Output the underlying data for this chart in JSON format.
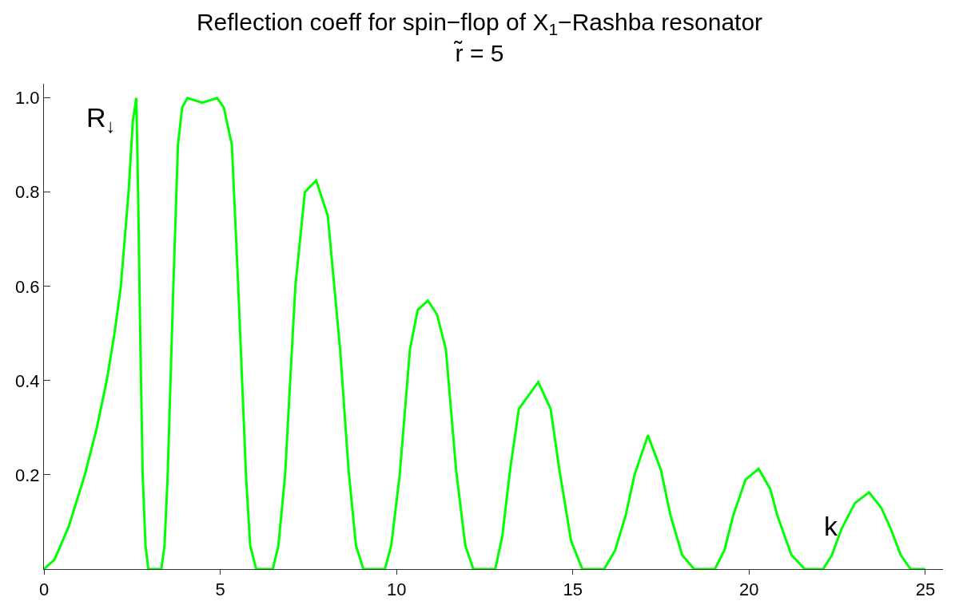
{
  "chart_data": {
    "type": "line",
    "title": "Reflection coeff for spin−flop of X$_{1}$−Rashba resonator",
    "subtitle": "r̃ = 5",
    "x": [
      0,
      0.3,
      0.7,
      1.16,
      1.5,
      1.78,
      2.0,
      2.18,
      2.4,
      2.52,
      2.62,
      2.67,
      2.73,
      2.8,
      2.88,
      2.96,
      3.33,
      3.42,
      3.51,
      3.67,
      3.8,
      3.92,
      4.07,
      4.49,
      4.91,
      5.1,
      5.33,
      5.51,
      5.73,
      5.85,
      6.02,
      6.49,
      6.65,
      6.84,
      7.13,
      7.4,
      7.72,
      8.05,
      8.4,
      8.64,
      8.85,
      9.06,
      9.67,
      9.85,
      10.09,
      10.38,
      10.6,
      10.89,
      11.15,
      11.4,
      11.69,
      11.95,
      12.18,
      12.8,
      13.0,
      13.22,
      13.47,
      14.02,
      14.37,
      14.62,
      14.95,
      15.27,
      15.89,
      16.2,
      16.5,
      16.75,
      17.13,
      17.5,
      17.77,
      18.1,
      18.44,
      19.03,
      19.3,
      19.55,
      19.9,
      20.27,
      20.6,
      20.8,
      21.2,
      21.58,
      22.1,
      22.35,
      22.62,
      23.0,
      23.4,
      23.75,
      24.02,
      24.3,
      24.58,
      25.0
    ],
    "series": [
      {
        "color": "#00ff00",
        "values": [
          0,
          0.02,
          0.09,
          0.2,
          0.3,
          0.4,
          0.5,
          0.6,
          0.8,
          0.95,
          1.0,
          0.8,
          0.5,
          0.2,
          0.05,
          0,
          0,
          0.05,
          0.2,
          0.6,
          0.9,
          0.98,
          1.0,
          0.99,
          1.0,
          0.98,
          0.9,
          0.6,
          0.2,
          0.05,
          0,
          0,
          0.05,
          0.2,
          0.6,
          0.8,
          0.825,
          0.75,
          0.466,
          0.21,
          0.05,
          0,
          0,
          0.05,
          0.2,
          0.466,
          0.55,
          0.57,
          0.54,
          0.466,
          0.21,
          0.05,
          0,
          0,
          0.07,
          0.21,
          0.34,
          0.397,
          0.34,
          0.21,
          0.06,
          0,
          0,
          0.04,
          0.114,
          0.2,
          0.284,
          0.21,
          0.114,
          0.03,
          0,
          0,
          0.04,
          0.114,
          0.19,
          0.213,
          0.17,
          0.114,
          0.03,
          0,
          0,
          0.03,
          0.085,
          0.14,
          0.163,
          0.13,
          0.085,
          0.03,
          0,
          0
        ]
      }
    ],
    "xlim": [
      0,
      25.5
    ],
    "xticks": [
      0,
      5,
      10,
      15,
      20,
      25
    ],
    "ylim": [
      0,
      1.03
    ],
    "yticks": [
      {
        "value": 0,
        "label": null
      },
      0.2,
      0.4,
      0.6,
      0.8,
      {
        "value": 1,
        "label": "1.0"
      }
    ],
    "annotations": [
      "R$_{↓}$",
      "k"
    ],
    "marker": "none",
    "line_style": "solid"
  }
}
